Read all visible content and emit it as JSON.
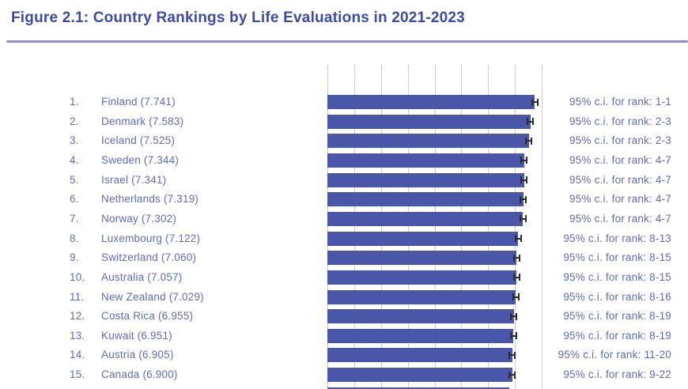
{
  "figure_title": "Figure 2.1: Country Rankings by Life Evaluations in 2021-2023",
  "chart_data": {
    "type": "bar",
    "orientation": "horizontal",
    "title": "Figure 2.1: Country Rankings by Life Evaluations in 2021-2023",
    "x_axis": {
      "min": 0,
      "max": 8,
      "gridline_step": 1,
      "tick_labels_visible": false
    },
    "legend": "none",
    "grid": "vertical",
    "rows": [
      {
        "rank": "1.",
        "country": "Finland",
        "value": 7.741,
        "label": "Finland (7.741)",
        "ci": "95% c.i. for rank: 1-1"
      },
      {
        "rank": "2.",
        "country": "Denmark",
        "value": 7.583,
        "label": "Denmark (7.583)",
        "ci": "95% c.i. for rank: 2-3"
      },
      {
        "rank": "3.",
        "country": "Iceland",
        "value": 7.525,
        "label": "Iceland (7.525)",
        "ci": "95% c.i. for rank: 2-3"
      },
      {
        "rank": "4.",
        "country": "Sweden",
        "value": 7.344,
        "label": "Sweden (7.344)",
        "ci": "95% c.i. for rank: 4-7"
      },
      {
        "rank": "5.",
        "country": "Israel",
        "value": 7.341,
        "label": "Israel (7.341)",
        "ci": "95% c.i. for rank: 4-7"
      },
      {
        "rank": "6.",
        "country": "Netherlands",
        "value": 7.319,
        "label": "Netherlands (7.319)",
        "ci": "95% c.i. for rank: 4-7"
      },
      {
        "rank": "7.",
        "country": "Norway",
        "value": 7.302,
        "label": "Norway (7.302)",
        "ci": "95% c.i. for rank: 4-7"
      },
      {
        "rank": "8.",
        "country": "Luxembourg",
        "value": 7.122,
        "label": "Luxembourg (7.122)",
        "ci": "95% c.i. for rank: 8-13"
      },
      {
        "rank": "9.",
        "country": "Switzerland",
        "value": 7.06,
        "label": "Switzerland (7.060)",
        "ci": "95% c.i. for rank: 8-15"
      },
      {
        "rank": "10.",
        "country": "Australia",
        "value": 7.057,
        "label": "Australia (7.057)",
        "ci": "95% c.i. for rank: 8-15"
      },
      {
        "rank": "11.",
        "country": "New Zealand",
        "value": 7.029,
        "label": "New Zealand (7.029)",
        "ci": "95% c.i. for rank: 8-16"
      },
      {
        "rank": "12.",
        "country": "Costa Rica",
        "value": 6.955,
        "label": "Costa Rica (6.955)",
        "ci": "95% c.i. for rank: 8-19"
      },
      {
        "rank": "13.",
        "country": "Kuwait",
        "value": 6.951,
        "label": "Kuwait (6.951)",
        "ci": "95% c.i. for rank: 8-19"
      },
      {
        "rank": "14.",
        "country": "Austria",
        "value": 6.905,
        "label": "Austria (6.905)",
        "ci": "95% c.i. for rank: 11-20"
      },
      {
        "rank": "15.",
        "country": "Canada",
        "value": 6.9,
        "label": "Canada (6.900)",
        "ci": "95% c.i. for rank: 9-22"
      }
    ],
    "partial_next_bar_value": 6.8,
    "colors": {
      "bar": "#4a57a8",
      "gridline": "#cbc9e6",
      "row_text": "#5f6bbe",
      "title": "#3c4ca4",
      "rule": "#8d90cd",
      "whisker": "#2b2b2b"
    }
  }
}
